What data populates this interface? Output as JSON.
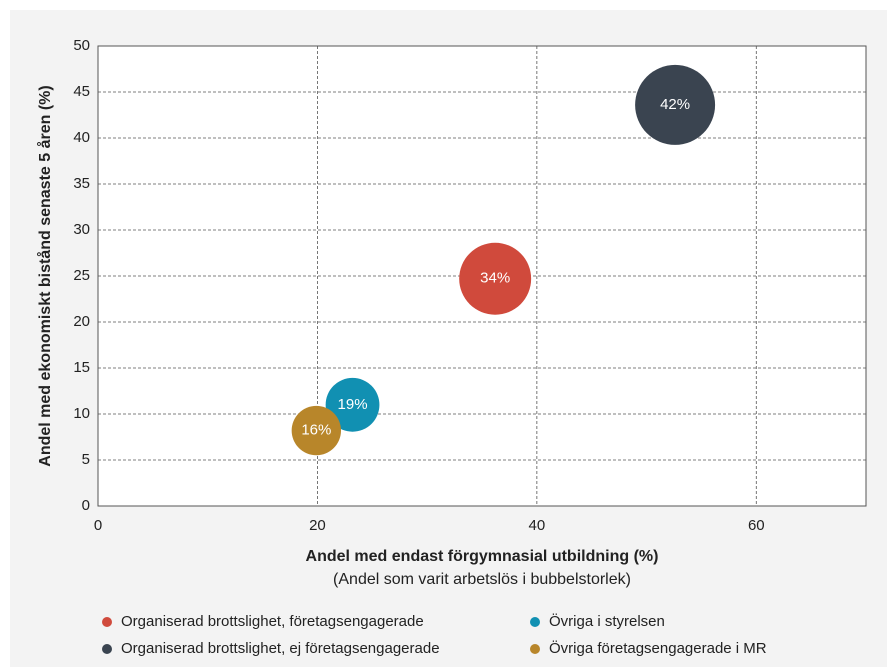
{
  "chart_data": {
    "type": "bubble",
    "xlabel": "Andel med endast förgymnasial utbildning (%)",
    "xlabel_note": "(Andel som varit arbetslös i bubbelstorlek)",
    "ylabel": "Andel med ekonomiskt bistånd senaste 5 åren (%)",
    "xlim": [
      0,
      70
    ],
    "ylim": [
      0,
      50
    ],
    "xticks": [
      0,
      20,
      40,
      60
    ],
    "yticks": [
      0,
      5,
      10,
      15,
      20,
      25,
      30,
      35,
      40,
      45,
      50
    ],
    "grid": true,
    "series": [
      {
        "name": "Organiserad brottslighet, företagsengagerade",
        "color": "#d04a3c",
        "x": [
          36.2
        ],
        "values": [
          24.7
        ],
        "sizes": [
          34
        ],
        "value_labels": [
          "34%"
        ]
      },
      {
        "name": "Organiserad brottslighet, ej företagsengagerade",
        "color": "#3a4450",
        "x": [
          52.6
        ],
        "values": [
          43.6
        ],
        "sizes": [
          42
        ],
        "value_labels": [
          "42%"
        ]
      },
      {
        "name": "Övriga i styrelsen",
        "color": "#1190b2",
        "x": [
          23.2
        ],
        "values": [
          11.0
        ],
        "sizes": [
          19
        ],
        "value_labels": [
          "19%"
        ]
      },
      {
        "name": "Övriga företagsengagerade i MR",
        "color": "#b8862a",
        "x": [
          19.9
        ],
        "values": [
          8.2
        ],
        "sizes": [
          16
        ],
        "value_labels": [
          "16%"
        ]
      }
    ]
  }
}
